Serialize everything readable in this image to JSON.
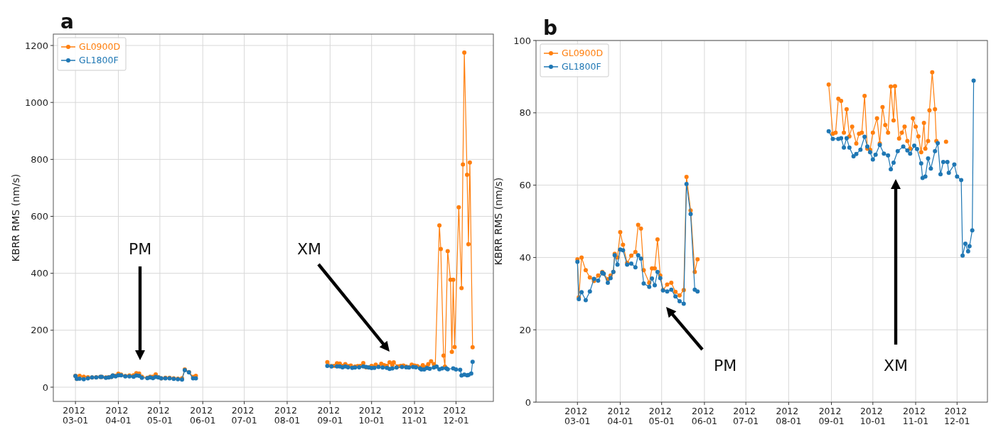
{
  "chart_data": [
    {
      "type": "line",
      "title": "a",
      "ylabel": "KBRR RMS (nm/s)",
      "xlim": [
        "2012-02-14",
        "2012-12-28"
      ],
      "ylim": [
        -50,
        1240
      ],
      "yticks": [
        0,
        200,
        400,
        600,
        800,
        1000,
        1200
      ],
      "xticks": [
        {
          "value": "2012-03-01",
          "label": "2012\n03-01"
        },
        {
          "value": "2012-04-01",
          "label": "2012\n04-01"
        },
        {
          "value": "2012-05-01",
          "label": "2012\n05-01"
        },
        {
          "value": "2012-06-01",
          "label": "2012\n06-01"
        },
        {
          "value": "2012-07-01",
          "label": "2012\n07-01"
        },
        {
          "value": "2012-08-01",
          "label": "2012\n08-01"
        },
        {
          "value": "2012-09-01",
          "label": "2012\n09-01"
        },
        {
          "value": "2012-10-01",
          "label": "2012\n10-01"
        },
        {
          "value": "2012-11-01",
          "label": "2012\n11-01"
        },
        {
          "value": "2012-12-01",
          "label": "2012\n12-01"
        }
      ],
      "grid": true,
      "legend": "top left",
      "marker": "circle",
      "line_style": "solid",
      "annotations": [
        "PM",
        "XM"
      ],
      "series": [
        {
          "name": "GL0900D",
          "color": "#ff7f0e",
          "x": [
            "2012-03-01",
            "2012-03-02",
            "2012-03-04",
            "2012-03-07",
            "2012-03-10",
            "2012-03-13",
            "2012-03-16",
            "2012-03-19",
            "2012-03-20",
            "2012-03-23",
            "2012-03-25",
            "2012-03-27",
            "2012-03-28",
            "2012-03-30",
            "2012-04-01",
            "2012-04-03",
            "2012-04-06",
            "2012-04-09",
            "2012-04-12",
            "2012-04-14",
            "2012-04-16",
            "2012-04-18",
            "2012-04-22",
            "2012-04-24",
            "2012-04-26",
            "2012-04-28",
            "2012-04-30",
            "2012-05-02",
            "2012-05-05",
            "2012-05-08",
            "2012-05-11",
            "2012-05-14",
            "2012-05-17",
            "2012-05-19",
            "2012-05-22",
            "2012-05-25",
            "2012-05-27",
            "2012-07-15",
            "2012-08-30",
            "2012-09-02",
            "2012-09-04",
            "2012-09-06",
            "2012-09-08",
            "2012-09-10",
            "2012-09-12",
            "2012-09-14",
            "2012-09-16",
            "2012-09-19",
            "2012-09-21",
            "2012-09-23",
            "2012-09-25",
            "2012-09-27",
            "2012-09-29",
            "2012-10-01",
            "2012-10-04",
            "2012-10-06",
            "2012-10-08",
            "2012-10-10",
            "2012-10-12",
            "2012-10-14",
            "2012-10-16",
            "2012-10-17",
            "2012-10-20",
            "2012-10-22",
            "2012-10-24",
            "2012-10-26",
            "2012-10-28",
            "2012-10-30",
            "2012-11-01",
            "2012-11-03",
            "2012-11-05",
            "2012-11-07",
            "2012-11-08",
            "2012-11-10",
            "2012-11-11",
            "2012-11-13",
            "2012-11-15",
            "2012-11-16",
            "2012-11-19",
            "2012-11-20",
            "2012-11-22",
            "2012-11-23",
            "2012-11-25",
            "2012-11-27",
            "2012-11-28",
            "2012-11-29",
            "2012-11-30",
            "2012-12-03",
            "2012-12-05",
            "2012-12-06",
            "2012-12-07",
            "2012-12-09",
            "2012-12-10",
            "2012-12-11",
            "2012-12-13"
          ],
          "values": [
            40,
            29,
            40,
            37,
            35,
            34,
            35,
            36,
            36,
            34,
            35,
            36,
            41,
            40,
            47,
            44,
            39,
            41,
            42,
            49,
            48,
            37,
            33,
            37,
            37,
            45,
            35,
            31,
            33,
            33,
            31,
            30,
            31,
            62,
            53,
            36,
            40,
            null,
            88,
            74,
            75,
            84,
            83,
            75,
            81,
            74,
            76,
            72,
            74,
            75,
            85,
            70,
            70,
            75,
            79,
            72,
            82,
            77,
            75,
            87,
            78,
            87,
            73,
            75,
            76,
            72,
            70,
            79,
            76,
            74,
            69,
            77,
            70,
            72,
            81,
            91,
            81,
            72,
            568,
            485,
            111,
            72,
            478,
            377,
            124,
            377,
            141,
            632,
            348,
            782,
            1175,
            746,
            502,
            789,
            140
          ]
        },
        {
          "name": "GL1800F",
          "color": "#1f77b4",
          "x": [
            "2012-03-01",
            "2012-03-02",
            "2012-03-04",
            "2012-03-07",
            "2012-03-10",
            "2012-03-13",
            "2012-03-16",
            "2012-03-19",
            "2012-03-20",
            "2012-03-23",
            "2012-03-25",
            "2012-03-27",
            "2012-03-28",
            "2012-03-30",
            "2012-04-01",
            "2012-04-03",
            "2012-04-06",
            "2012-04-09",
            "2012-04-12",
            "2012-04-14",
            "2012-04-16",
            "2012-04-18",
            "2012-04-22",
            "2012-04-24",
            "2012-04-26",
            "2012-04-28",
            "2012-04-30",
            "2012-05-02",
            "2012-05-05",
            "2012-05-08",
            "2012-05-11",
            "2012-05-14",
            "2012-05-17",
            "2012-05-19",
            "2012-05-22",
            "2012-05-25",
            "2012-05-27",
            "2012-07-15",
            "2012-08-30",
            "2012-09-02",
            "2012-09-06",
            "2012-09-08",
            "2012-09-10",
            "2012-09-12",
            "2012-09-14",
            "2012-09-17",
            "2012-09-19",
            "2012-09-22",
            "2012-09-25",
            "2012-09-27",
            "2012-09-29",
            "2012-10-01",
            "2012-10-03",
            "2012-10-06",
            "2012-10-09",
            "2012-10-12",
            "2012-10-14",
            "2012-10-16",
            "2012-10-19",
            "2012-10-23",
            "2012-10-26",
            "2012-10-28",
            "2012-10-31",
            "2012-11-02",
            "2012-11-05",
            "2012-11-06",
            "2012-11-08",
            "2012-11-10",
            "2012-11-12",
            "2012-11-15",
            "2012-11-17",
            "2012-11-19",
            "2012-11-21",
            "2012-11-24",
            "2012-11-25",
            "2012-11-29",
            "2012-12-01",
            "2012-12-04",
            "2012-12-05",
            "2012-12-07",
            "2012-12-09",
            "2012-12-10",
            "2012-12-12",
            "2012-12-13"
          ],
          "values": [
            39,
            29,
            30,
            28,
            31,
            34,
            34,
            36,
            36,
            33,
            34,
            36,
            41,
            38,
            42,
            42,
            38,
            38,
            37,
            41,
            40,
            33,
            32,
            34,
            32,
            36,
            34,
            31,
            31,
            31,
            29,
            28,
            27,
            60,
            52,
            31,
            31,
            null,
            75,
            73,
            73,
            73,
            70,
            73,
            70,
            68,
            69,
            70,
            73,
            71,
            69,
            67,
            68,
            71,
            69,
            68,
            64,
            66,
            69,
            71,
            70,
            69,
            71,
            70,
            66,
            62,
            62,
            67,
            65,
            69,
            72,
            63,
            66,
            66,
            63,
            66,
            62,
            61,
            41,
            44,
            42,
            43,
            48,
            89
          ]
        }
      ]
    },
    {
      "type": "line",
      "title": "b",
      "ylabel": "KBRR RMS (nm/s)",
      "xlim": [
        "2012-01-31",
        "2012-12-23"
      ],
      "ylim": [
        0,
        100
      ],
      "yticks": [
        0,
        20,
        40,
        60,
        80,
        100
      ],
      "xticks": [
        {
          "value": "2012-03-01",
          "label": "2012\n03-01"
        },
        {
          "value": "2012-04-01",
          "label": "2012\n04-01"
        },
        {
          "value": "2012-05-01",
          "label": "2012\n05-01"
        },
        {
          "value": "2012-06-01",
          "label": "2012\n06-01"
        },
        {
          "value": "2012-07-01",
          "label": "2012\n07-01"
        },
        {
          "value": "2012-08-01",
          "label": "2012\n08-01"
        },
        {
          "value": "2012-09-01",
          "label": "2012\n09-01"
        },
        {
          "value": "2012-10-01",
          "label": "2012\n10-01"
        },
        {
          "value": "2012-11-01",
          "label": "2012\n11-01"
        },
        {
          "value": "2012-12-01",
          "label": "2012\n12-01"
        }
      ],
      "grid": true,
      "legend": "top left",
      "marker": "circle",
      "line_style": "solid",
      "annotations": [
        "PM",
        "XM"
      ],
      "series": [
        {
          "name": "GL0900D",
          "color": "#ff7f0e",
          "x": [
            "2012-03-01",
            "2012-03-02",
            "2012-03-04",
            "2012-03-07",
            "2012-03-10",
            "2012-03-13",
            "2012-03-16",
            "2012-03-19",
            "2012-03-20",
            "2012-03-23",
            "2012-03-25",
            "2012-03-27",
            "2012-03-28",
            "2012-03-30",
            "2012-04-01",
            "2012-04-03",
            "2012-04-06",
            "2012-04-09",
            "2012-04-12",
            "2012-04-14",
            "2012-04-16",
            "2012-04-18",
            "2012-04-22",
            "2012-04-24",
            "2012-04-26",
            "2012-04-28",
            "2012-04-30",
            "2012-05-02",
            "2012-05-05",
            "2012-05-08",
            "2012-05-11",
            "2012-05-14",
            "2012-05-17",
            "2012-05-19",
            "2012-05-22",
            "2012-05-25",
            "2012-05-27",
            "2012-07-15",
            "2012-08-30",
            "2012-09-02",
            "2012-09-04",
            "2012-09-06",
            "2012-09-08",
            "2012-09-10",
            "2012-09-12",
            "2012-09-14",
            "2012-09-16",
            "2012-09-19",
            "2012-09-21",
            "2012-09-23",
            "2012-09-25",
            "2012-09-27",
            "2012-09-29",
            "2012-10-01",
            "2012-10-04",
            "2012-10-06",
            "2012-10-08",
            "2012-10-10",
            "2012-10-12",
            "2012-10-14",
            "2012-10-16",
            "2012-10-17",
            "2012-10-20",
            "2012-10-22",
            "2012-10-24",
            "2012-10-26",
            "2012-10-28",
            "2012-10-30",
            "2012-11-01",
            "2012-11-03",
            "2012-11-05",
            "2012-11-07",
            "2012-11-08",
            "2012-11-10",
            "2012-11-11",
            "2012-11-13",
            "2012-11-15",
            "2012-11-16",
            "2012-11-19",
            "2012-11-23"
          ],
          "values": [
            39.5,
            29,
            40,
            36.5,
            34.5,
            33.5,
            35,
            36,
            35.5,
            34,
            35,
            36,
            41,
            40,
            47,
            43.5,
            38.5,
            40.5,
            41.5,
            49,
            48,
            36.5,
            33,
            37,
            37,
            45,
            35,
            31,
            32.5,
            33,
            30.5,
            29.5,
            31,
            62.3,
            53,
            36,
            39.5,
            null,
            87.8,
            74.2,
            74.5,
            83.9,
            83.3,
            74.5,
            81,
            73.5,
            76.2,
            71.5,
            74.2,
            74.5,
            84.7,
            70.1,
            69.8,
            74.5,
            78.5,
            71.5,
            81.6,
            76.6,
            74.5,
            87.3,
            77.9,
            87.4,
            72.9,
            74.5,
            76.2,
            72.2,
            70.1,
            78.5,
            76.2,
            73.5,
            69.1,
            77.2,
            70.1,
            72.2,
            80.7,
            91.2,
            81,
            72.2,
            null,
            72
          ]
        },
        {
          "name": "GL1800F",
          "color": "#1f77b4",
          "x": [
            "2012-03-01",
            "2012-03-02",
            "2012-03-04",
            "2012-03-07",
            "2012-03-10",
            "2012-03-13",
            "2012-03-16",
            "2012-03-19",
            "2012-03-20",
            "2012-03-23",
            "2012-03-25",
            "2012-03-27",
            "2012-03-28",
            "2012-03-30",
            "2012-04-01",
            "2012-04-03",
            "2012-04-06",
            "2012-04-09",
            "2012-04-12",
            "2012-04-14",
            "2012-04-16",
            "2012-04-18",
            "2012-04-22",
            "2012-04-24",
            "2012-04-26",
            "2012-04-28",
            "2012-04-30",
            "2012-05-02",
            "2012-05-05",
            "2012-05-08",
            "2012-05-11",
            "2012-05-14",
            "2012-05-17",
            "2012-05-19",
            "2012-05-22",
            "2012-05-25",
            "2012-05-27",
            "2012-07-15",
            "2012-08-30",
            "2012-09-02",
            "2012-09-06",
            "2012-09-08",
            "2012-09-10",
            "2012-09-12",
            "2012-09-14",
            "2012-09-17",
            "2012-09-19",
            "2012-09-22",
            "2012-09-25",
            "2012-09-27",
            "2012-09-29",
            "2012-10-01",
            "2012-10-03",
            "2012-10-06",
            "2012-10-09",
            "2012-10-12",
            "2012-10-14",
            "2012-10-16",
            "2012-10-19",
            "2012-10-23",
            "2012-10-26",
            "2012-10-28",
            "2012-10-31",
            "2012-11-02",
            "2012-11-05",
            "2012-11-06",
            "2012-11-08",
            "2012-11-10",
            "2012-11-12",
            "2012-11-15",
            "2012-11-17",
            "2012-11-19",
            "2012-11-21",
            "2012-11-24",
            "2012-11-25",
            "2012-11-29",
            "2012-12-01",
            "2012-12-04",
            "2012-12-05",
            "2012-12-07",
            "2012-12-09",
            "2012-12-10",
            "2012-12-12",
            "2012-12-13"
          ],
          "values": [
            38.8,
            28.5,
            30.4,
            28.2,
            30.6,
            34.1,
            33.6,
            35.8,
            35.5,
            33,
            34.3,
            36,
            40.6,
            38,
            42.2,
            42,
            38,
            38.3,
            37.3,
            40.6,
            39.7,
            32.8,
            31.9,
            34.2,
            32.3,
            36,
            34.3,
            30.9,
            30.6,
            31.1,
            29.2,
            27.9,
            27.2,
            60.3,
            52,
            31.1,
            30.6,
            null,
            74.9,
            72.8,
            72.8,
            73,
            70.4,
            73,
            70.4,
            68,
            68.6,
            69.8,
            73.4,
            70.7,
            69.1,
            67.1,
            68.4,
            71.1,
            68.7,
            68.2,
            64.4,
            66.2,
            69.4,
            70.7,
            69.6,
            68.7,
            70.9,
            70,
            66,
            62,
            62.4,
            67.4,
            64.6,
            69.4,
            71.6,
            63,
            66.4,
            66.4,
            63.4,
            65.7,
            62.4,
            61.4,
            40.5,
            43.8,
            41.7,
            43.1,
            47.5,
            88.9
          ]
        }
      ]
    }
  ]
}
